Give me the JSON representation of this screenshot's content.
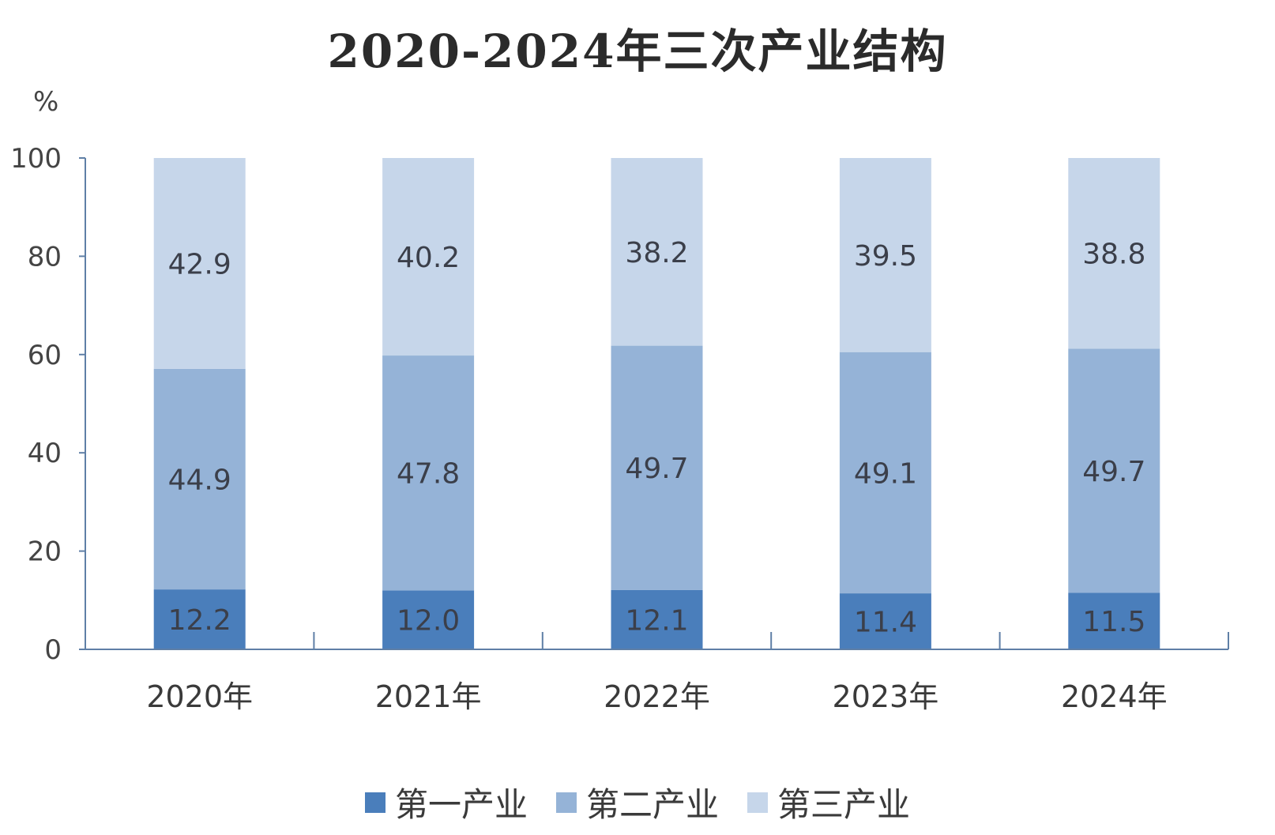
{
  "chart_data": {
    "type": "bar",
    "stacked": true,
    "title": "2020-2024年三次产业结构",
    "ylabel": "%",
    "ylim": [
      0,
      100
    ],
    "yticks": [
      "0",
      "20",
      "40",
      "60",
      "80",
      "100"
    ],
    "categories": [
      "2020年",
      "2021年",
      "2022年",
      "2023年",
      "2024年"
    ],
    "series": [
      {
        "name": "第一产业",
        "values": [
          12.2,
          12.0,
          12.1,
          11.4,
          11.5
        ],
        "labels": [
          "12.2",
          "12.0",
          "12.1",
          "11.4",
          "11.5"
        ],
        "color": "#4a7ebb"
      },
      {
        "name": "第二产业",
        "values": [
          44.9,
          47.8,
          49.7,
          49.1,
          49.7
        ],
        "labels": [
          "44.9",
          "47.8",
          "49.7",
          "49.1",
          "49.7"
        ],
        "color": "#95b3d7"
      },
      {
        "name": "第三产业",
        "values": [
          42.9,
          40.2,
          38.2,
          39.5,
          38.8
        ],
        "labels": [
          "42.9",
          "40.2",
          "38.2",
          "39.5",
          "38.8"
        ],
        "color": "#c6d6ea"
      }
    ],
    "legend_position": "bottom",
    "grid": false
  }
}
